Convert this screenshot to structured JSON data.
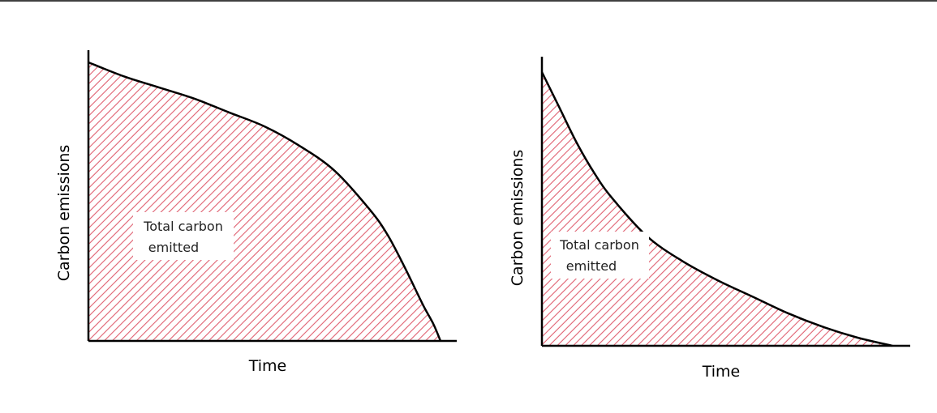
{
  "chart_data": [
    {
      "type": "area",
      "xlabel": "Time",
      "ylabel": "Carbon emissions",
      "annotation": [
        "Total carbon",
        "emitted"
      ],
      "x": [
        0,
        0.1,
        0.2,
        0.3,
        0.4,
        0.5,
        0.6,
        0.7,
        0.8,
        0.85,
        0.9,
        0.95,
        0.98,
        1.0
      ],
      "y": [
        1.0,
        0.95,
        0.91,
        0.87,
        0.82,
        0.77,
        0.7,
        0.61,
        0.47,
        0.38,
        0.26,
        0.13,
        0.06,
        0.0
      ],
      "xlim": [
        0,
        1
      ],
      "ylim": [
        0,
        1
      ],
      "fill": "hatched",
      "fill_color": "#e06070",
      "line_color": "#000000",
      "grid": false
    },
    {
      "type": "area",
      "xlabel": "Time",
      "ylabel": "Carbon emissions",
      "annotation": [
        "Total carbon",
        "emitted"
      ],
      "x": [
        0,
        0.05,
        0.1,
        0.15,
        0.2,
        0.3,
        0.4,
        0.5,
        0.6,
        0.7,
        0.8,
        0.9,
        1.0
      ],
      "y": [
        1.0,
        0.87,
        0.74,
        0.63,
        0.54,
        0.4,
        0.31,
        0.24,
        0.18,
        0.12,
        0.07,
        0.03,
        0.0
      ],
      "xlim": [
        0,
        1
      ],
      "ylim": [
        0,
        1
      ],
      "fill": "hatched",
      "fill_color": "#e06070",
      "line_color": "#000000",
      "grid": false
    }
  ]
}
